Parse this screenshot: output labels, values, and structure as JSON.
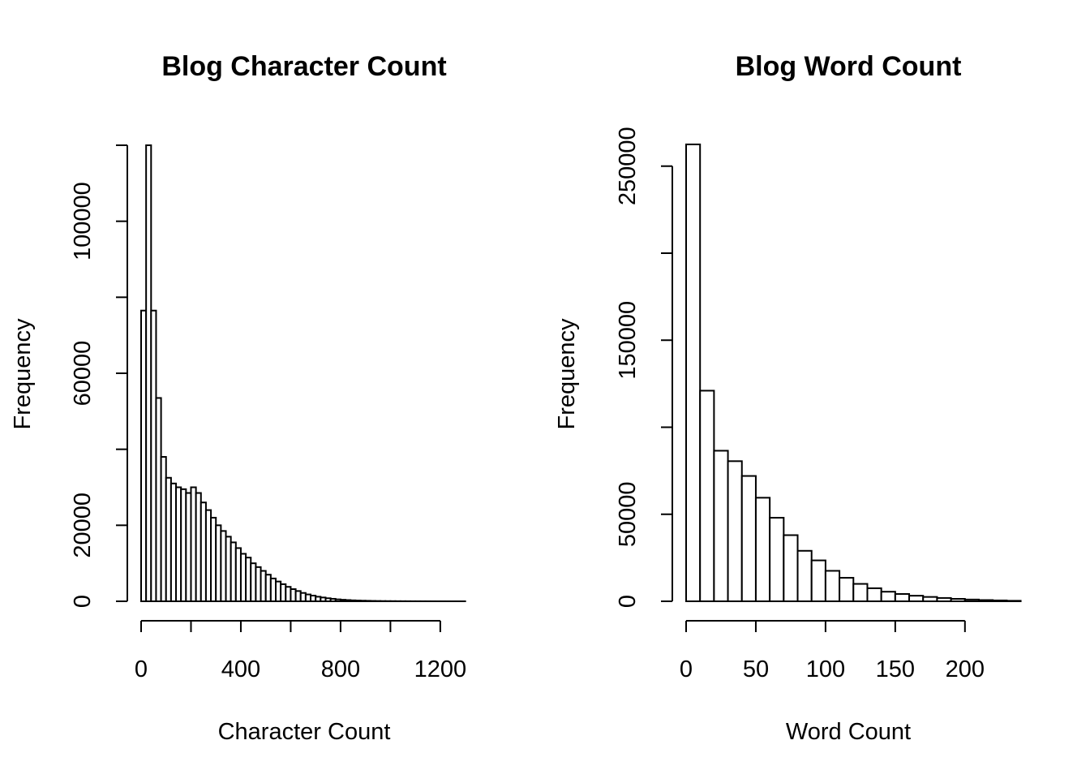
{
  "chart_data": [
    {
      "type": "bar",
      "title": "Blog Character Count",
      "xlabel": "Character Count",
      "ylabel": "Frequency",
      "bin_width": 20,
      "xlim": [
        0,
        1350
      ],
      "ylim": [
        0,
        120000
      ],
      "x_ticks": [
        0,
        400,
        800,
        1200
      ],
      "x_tick_minor": [
        200,
        600,
        1000
      ],
      "y_ticks": [
        0,
        20000,
        60000,
        100000
      ],
      "y_tick_minor": [
        40000,
        80000,
        120000
      ],
      "bins_start": [
        0,
        20,
        40,
        60,
        80,
        100,
        120,
        140,
        160,
        180,
        200,
        220,
        240,
        260,
        280,
        300,
        320,
        340,
        360,
        380,
        400,
        420,
        440,
        460,
        480,
        500,
        520,
        540,
        560,
        580,
        600,
        620,
        640,
        660,
        680,
        700,
        720,
        740,
        760,
        780,
        800,
        820,
        840,
        860,
        880,
        900,
        920,
        940,
        960,
        980,
        1000,
        1020,
        1040,
        1060,
        1080,
        1100,
        1120,
        1140,
        1160,
        1180,
        1200,
        1220,
        1240,
        1260,
        1280,
        1300,
        1320
      ],
      "values": [
        76500,
        120000,
        76500,
        53500,
        38000,
        32500,
        31000,
        30000,
        29500,
        28500,
        30000,
        28500,
        26000,
        24000,
        22000,
        20000,
        18500,
        17000,
        15500,
        14000,
        12500,
        11500,
        10000,
        9000,
        8000,
        7000,
        6000,
        5200,
        4500,
        3800,
        3200,
        2700,
        2200,
        1800,
        1500,
        1200,
        1000,
        800,
        650,
        500,
        400,
        320,
        250,
        200,
        160,
        130,
        100,
        80,
        60,
        50,
        40,
        30,
        25,
        20,
        15,
        12,
        10,
        8,
        6,
        5,
        4,
        3,
        3,
        2,
        2,
        1,
        1
      ]
    },
    {
      "type": "bar",
      "title": "Blog Word Count",
      "xlabel": "Word Count",
      "ylabel": "Frequency",
      "bin_width": 10,
      "xlim": [
        0,
        242
      ],
      "ylim": [
        0,
        262000
      ],
      "x_ticks": [
        0,
        50,
        100,
        150,
        200
      ],
      "y_ticks": [
        0,
        50000,
        150000,
        250000
      ],
      "y_tick_minor": [
        100000,
        200000
      ],
      "bins_start": [
        0,
        10,
        20,
        30,
        40,
        50,
        60,
        70,
        80,
        90,
        100,
        110,
        120,
        130,
        140,
        150,
        160,
        170,
        180,
        190,
        200,
        210,
        220,
        230
      ],
      "values": [
        262500,
        121000,
        86500,
        80500,
        72000,
        59500,
        48000,
        38000,
        29000,
        23500,
        17500,
        13500,
        10000,
        7500,
        5500,
        4200,
        3200,
        2500,
        1900,
        1400,
        1000,
        700,
        500,
        300
      ]
    }
  ]
}
